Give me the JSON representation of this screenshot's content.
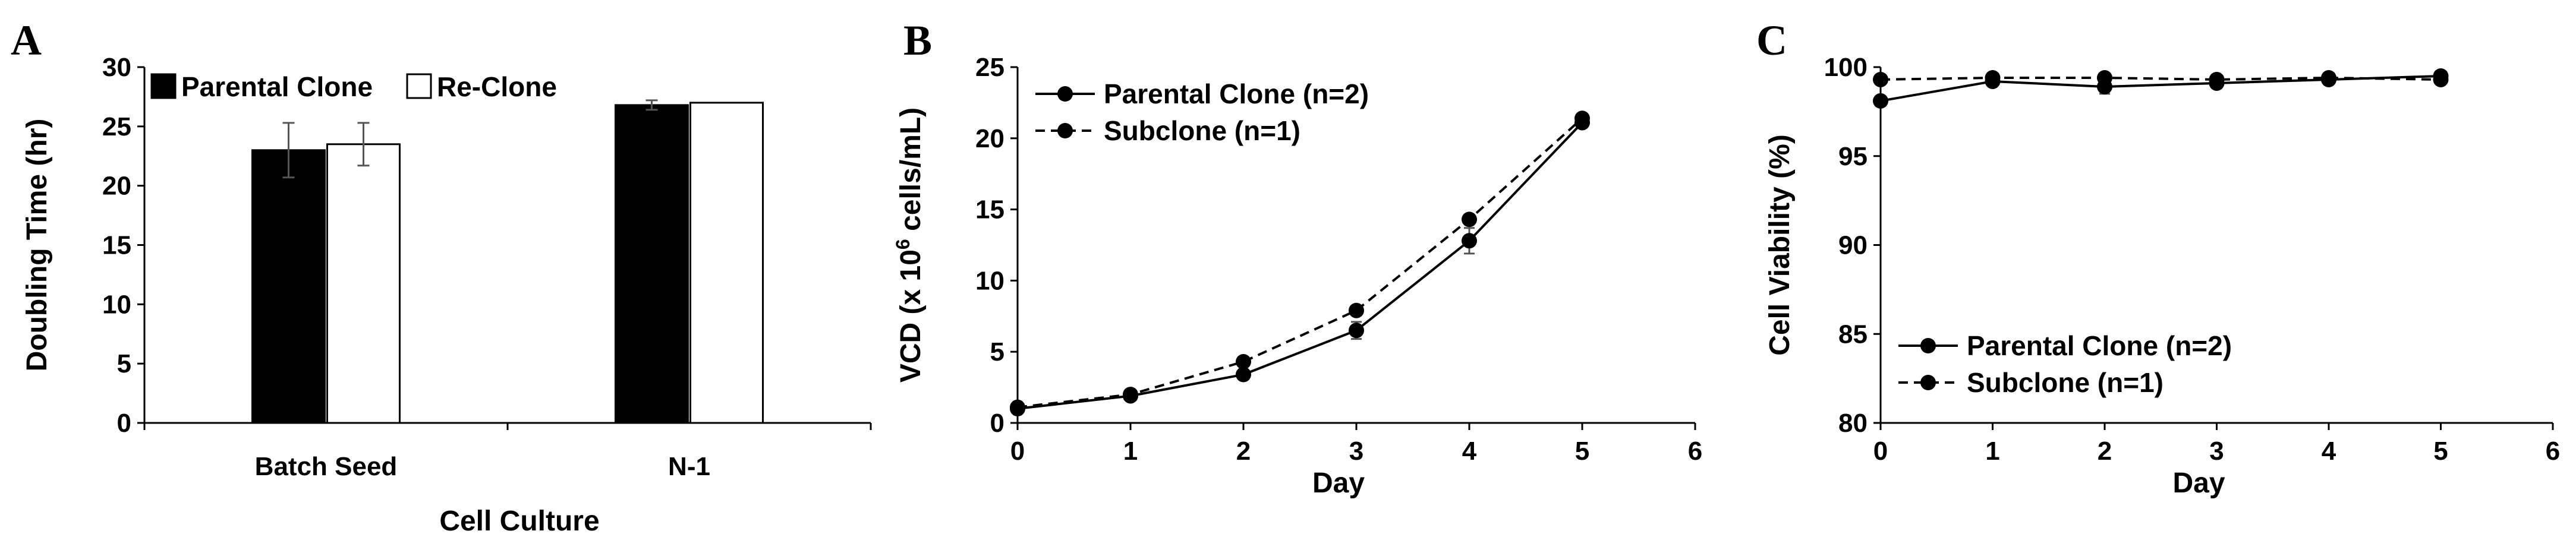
{
  "figure": {
    "panels": [
      {
        "letter": "A"
      },
      {
        "letter": "B"
      },
      {
        "letter": "C"
      }
    ]
  },
  "chart_data": [
    {
      "type": "bar",
      "panel": "A",
      "title": "",
      "xlabel": "Cell Culture",
      "ylabel": "Doubling Time (hr)",
      "ylim": [
        0,
        30
      ],
      "yticks": [
        "0",
        "5",
        "10",
        "15",
        "20",
        "25",
        "30"
      ],
      "categories": [
        "Batch Seed",
        "N-1"
      ],
      "series": [
        {
          "name": "Parental Clone",
          "color": "#000000",
          "values": [
            23.0,
            26.8
          ],
          "errors": [
            2.3,
            0.4
          ]
        },
        {
          "name": "Re-Clone",
          "color": "#ffffff",
          "values": [
            23.5,
            27.0
          ],
          "errors": [
            1.8,
            0.0
          ]
        }
      ],
      "legend": "top-left"
    },
    {
      "type": "line",
      "panel": "B",
      "title": "",
      "xlabel": "Day",
      "ylabel": "VCD (x 10",
      "ylabel_sup": "6",
      "ylabel_suffix": " cells/mL)",
      "xlim": [
        0,
        6
      ],
      "ylim": [
        0,
        25
      ],
      "xticks": [
        "0",
        "1",
        "2",
        "3",
        "4",
        "5",
        "6"
      ],
      "yticks": [
        "0",
        "5",
        "10",
        "15",
        "20",
        "25"
      ],
      "series": [
        {
          "name": "Parental Clone (n=2)",
          "style": "solid",
          "x": [
            0,
            1,
            2,
            3,
            4,
            5
          ],
          "y": [
            1.0,
            1.9,
            3.4,
            6.5,
            12.8,
            21.1
          ],
          "errors": [
            0,
            0,
            0,
            0.6,
            0.9,
            0
          ]
        },
        {
          "name": "Subclone (n=1)",
          "style": "dashed",
          "x": [
            0,
            1,
            2,
            3,
            4,
            5
          ],
          "y": [
            1.1,
            2.0,
            4.3,
            7.9,
            14.3,
            21.4
          ],
          "errors": [
            0,
            0,
            0,
            0,
            0,
            0
          ]
        }
      ],
      "legend": "top-left"
    },
    {
      "type": "line",
      "panel": "C",
      "title": "",
      "xlabel": "Day",
      "ylabel": "Cell Viability (%)",
      "xlim": [
        0,
        6
      ],
      "ylim": [
        80,
        100
      ],
      "xticks": [
        "0",
        "1",
        "2",
        "3",
        "4",
        "5",
        "6"
      ],
      "yticks": [
        "80",
        "85",
        "90",
        "95",
        "100"
      ],
      "series": [
        {
          "name": "Parental Clone (n=2)",
          "style": "solid",
          "x": [
            0,
            1,
            2,
            3,
            4,
            5
          ],
          "y": [
            98.1,
            99.2,
            98.9,
            99.1,
            99.3,
            99.5
          ],
          "errors": [
            0,
            0,
            0.4,
            0,
            0,
            0
          ]
        },
        {
          "name": "Subclone (n=1)",
          "style": "dashed",
          "x": [
            0,
            1,
            2,
            3,
            4,
            5
          ],
          "y": [
            99.3,
            99.4,
            99.4,
            99.3,
            99.4,
            99.3
          ],
          "errors": [
            0,
            0,
            0,
            0,
            0,
            0
          ]
        }
      ],
      "legend": "bottom-left"
    }
  ]
}
